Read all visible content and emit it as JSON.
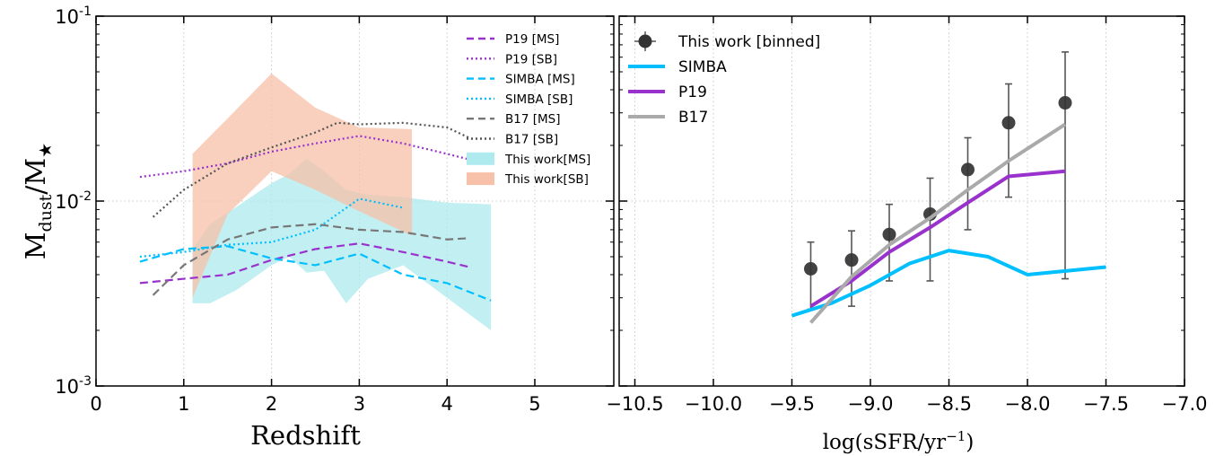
{
  "chart_data": [
    {
      "type": "line",
      "xlabel": "Redshift",
      "ylabel": "M_dust/M_★",
      "ylabel_main": "M",
      "ylabel_sub1": "dust",
      "ylabel_slash": "/M",
      "ylabel_sub2": "★",
      "xlim": [
        0,
        5.9
      ],
      "ylim": [
        0.001,
        0.1
      ],
      "yscale": "log",
      "grid": true,
      "legend_position": "top-right",
      "xticks": [
        0,
        1,
        2,
        3,
        4,
        5
      ],
      "xtick_labels": [
        "0",
        "1",
        "2",
        "3",
        "4",
        "5"
      ],
      "yticks": [
        0.001,
        0.01,
        0.1
      ],
      "ytick_labels": [
        {
          "base": "10",
          "exp": "-3"
        },
        {
          "base": "10",
          "exp": "-2"
        },
        {
          "base": "10",
          "exp": "-1"
        }
      ],
      "series": [
        {
          "name": "P19 [MS]",
          "style": "dashed",
          "color": "#9932cc",
          "x": [
            0.5,
            1.0,
            1.5,
            2.0,
            2.5,
            3.0,
            3.5,
            4.0,
            4.25
          ],
          "y": [
            0.0036,
            0.0038,
            0.004,
            0.0048,
            0.0055,
            0.0059,
            0.0053,
            0.0047,
            0.0044
          ]
        },
        {
          "name": "P19 [SB]",
          "style": "dotted",
          "color": "#9932cc",
          "x": [
            0.5,
            1.0,
            1.5,
            2.0,
            2.5,
            3.0,
            3.5,
            4.0,
            4.25
          ],
          "y": [
            0.0135,
            0.0145,
            0.016,
            0.0185,
            0.0205,
            0.0225,
            0.0205,
            0.018,
            0.0168
          ]
        },
        {
          "name": "SIMBA [MS]",
          "style": "dashed",
          "color": "#00bfff",
          "x": [
            0.5,
            1.0,
            1.5,
            2.0,
            2.5,
            3.0,
            3.5,
            4.0,
            4.5
          ],
          "y": [
            0.0047,
            0.0055,
            0.0057,
            0.0049,
            0.0045,
            0.0052,
            0.004,
            0.0036,
            0.0029
          ]
        },
        {
          "name": "SIMBA [SB]",
          "style": "dotted",
          "color": "#00bfff",
          "x": [
            0.5,
            1.0,
            1.5,
            2.0,
            2.5,
            3.0,
            3.5
          ],
          "y": [
            0.005,
            0.0053,
            0.0058,
            0.006,
            0.007,
            0.0103,
            0.0092
          ]
        },
        {
          "name": "B17 [MS]",
          "style": "dashed",
          "color": "#777777",
          "x": [
            0.65,
            1.0,
            1.5,
            2.0,
            2.5,
            3.0,
            3.5,
            4.0,
            4.25
          ],
          "y": [
            0.0031,
            0.0045,
            0.0062,
            0.0072,
            0.0075,
            0.007,
            0.0068,
            0.0062,
            0.0063
          ]
        },
        {
          "name": "B17 [SB]",
          "style": "dotted",
          "color": "#555555",
          "x": [
            0.65,
            1.0,
            1.5,
            2.0,
            2.5,
            2.75,
            3.0,
            3.5,
            4.0,
            4.25
          ],
          "y": [
            0.0082,
            0.0115,
            0.016,
            0.0195,
            0.0235,
            0.0265,
            0.026,
            0.0265,
            0.025,
            0.022
          ]
        }
      ],
      "bands": [
        {
          "name": "This work[MS]",
          "color": "#aeeaee",
          "x": [
            1.1,
            1.3,
            1.6,
            2.0,
            2.2,
            2.4,
            2.6,
            2.85,
            3.1,
            3.5,
            4.0,
            4.5
          ],
          "lower": [
            0.0028,
            0.0028,
            0.0033,
            0.0045,
            0.005,
            0.0041,
            0.0042,
            0.0028,
            0.0038,
            0.0045,
            0.003,
            0.002
          ],
          "upper": [
            0.0055,
            0.0075,
            0.0093,
            0.0125,
            0.014,
            0.017,
            0.0145,
            0.0115,
            0.0108,
            0.0105,
            0.0098,
            0.0096
          ]
        },
        {
          "name": "This work[SB]",
          "color": "#f7c0a8",
          "x": [
            1.1,
            1.5,
            2.0,
            2.5,
            3.0,
            3.6
          ],
          "lower": [
            0.003,
            0.0085,
            0.0145,
            0.0115,
            0.0088,
            0.0065
          ],
          "upper": [
            0.018,
            0.028,
            0.049,
            0.032,
            0.025,
            0.0245
          ]
        }
      ]
    },
    {
      "type": "line",
      "xlabel": "log(sSFR/yr⁻¹)",
      "xlabel_main": "log(sSFR/yr",
      "xlabel_sup": "−1",
      "xlabel_close": ")",
      "ylabel": "",
      "xlim": [
        -10.6,
        -7.0
      ],
      "ylim": [
        0.001,
        0.1
      ],
      "yscale": "log",
      "grid": true,
      "legend_position": "top-left",
      "xticks": [
        -10.5,
        -10.0,
        -9.5,
        -9.0,
        -8.5,
        -8.0,
        -7.5,
        -7.0
      ],
      "xtick_labels": [
        "−10.5",
        "−10.0",
        "−9.5",
        "−9.0",
        "−8.5",
        "−8.0",
        "−7.5",
        "−7.0"
      ],
      "yticks": [
        0.001,
        0.01,
        0.1
      ],
      "series": [
        {
          "name": "This work [binned]",
          "style": "errorbar",
          "color": "#333333",
          "x": [
            -9.38,
            -9.12,
            -8.88,
            -8.62,
            -8.38,
            -8.12,
            -7.76
          ],
          "y": [
            0.0043,
            0.0048,
            0.0066,
            0.0085,
            0.0148,
            0.0265,
            0.034
          ],
          "yerr_low": [
            0.0026,
            0.0027,
            0.0037,
            0.0037,
            0.007,
            0.0105,
            0.0038
          ],
          "yerr_high": [
            0.006,
            0.0069,
            0.0096,
            0.0133,
            0.022,
            0.043,
            0.064
          ]
        },
        {
          "name": "SIMBA",
          "style": "solid",
          "color": "#00bfff",
          "x": [
            -9.5,
            -9.25,
            -9.0,
            -8.75,
            -8.5,
            -8.25,
            -8.0,
            -7.5
          ],
          "y": [
            0.0024,
            0.0028,
            0.0035,
            0.0046,
            0.0054,
            0.005,
            0.004,
            0.0044
          ]
        },
        {
          "name": "P19",
          "style": "solid",
          "color": "#9932cc",
          "x": [
            -9.38,
            -9.12,
            -8.88,
            -8.62,
            -8.38,
            -8.12,
            -7.76
          ],
          "y": [
            0.0027,
            0.0037,
            0.0053,
            0.0072,
            0.0098,
            0.0136,
            0.0145
          ]
        },
        {
          "name": "B17",
          "style": "solid",
          "color": "#aaaaaa",
          "x": [
            -9.38,
            -9.12,
            -8.88,
            -8.62,
            -8.38,
            -8.12,
            -7.76
          ],
          "y": [
            0.0022,
            0.0039,
            0.0058,
            0.0081,
            0.0115,
            0.0165,
            0.026
          ]
        }
      ]
    }
  ]
}
